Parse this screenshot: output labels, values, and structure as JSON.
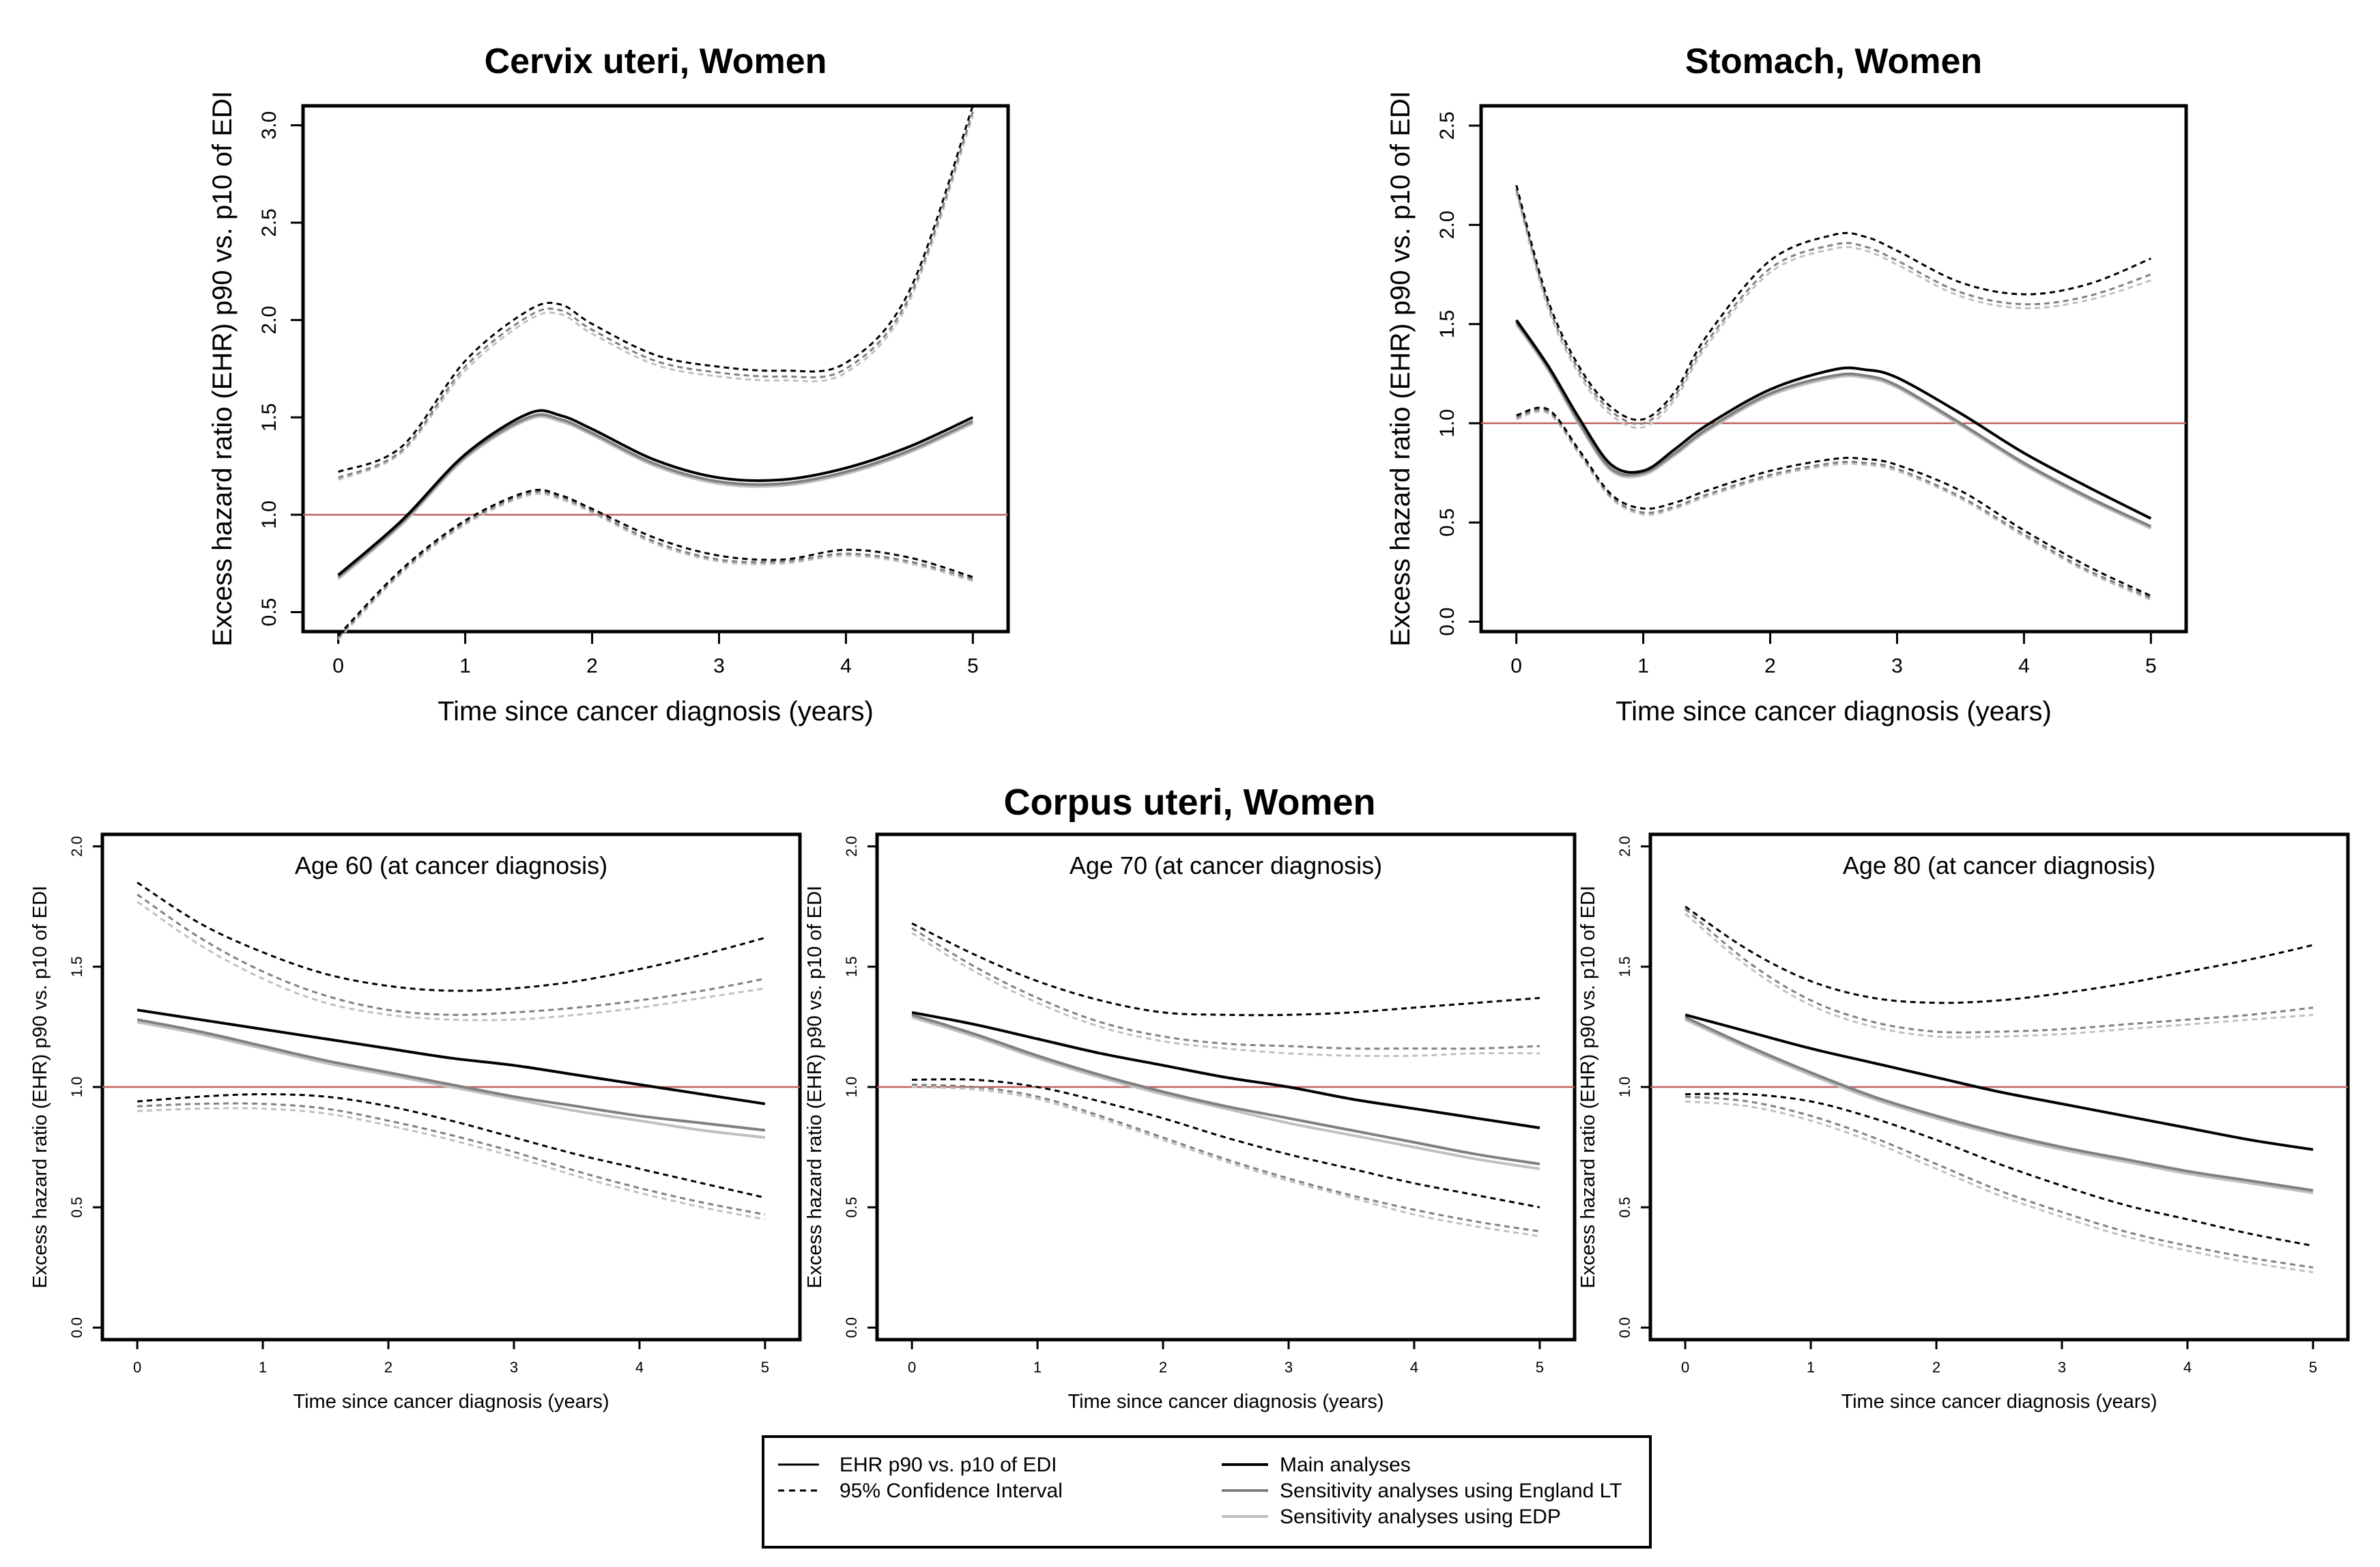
{
  "figure_title_bottom": "Corpus uteri, Women",
  "colors": {
    "main": "#000000",
    "england_lt": "#808080",
    "edp": "#c0c0c0",
    "reference": "#c06060"
  },
  "legend": {
    "line_types": [
      {
        "label": "EHR p90 vs. p10 of EDI",
        "style": "solid"
      },
      {
        "label": "95% Confidence Interval",
        "style": "dashed"
      }
    ],
    "analyses": [
      {
        "label": "Main analyses",
        "color": "#000000"
      },
      {
        "label": "Sensitivity analyses using England LT",
        "color": "#808080"
      },
      {
        "label": "Sensitivity analyses using EDP",
        "color": "#c0c0c0"
      }
    ]
  },
  "chart_data": [
    {
      "id": "cervix",
      "type": "line",
      "title": "Cervix uteri, Women",
      "panel_label": "",
      "xlabel": "Time since cancer diagnosis (years)",
      "ylabel": "Excess hazard ratio (EHR) p90 vs. p10 of EDI",
      "xlim": [
        0,
        5
      ],
      "ylim": [
        0.4,
        3.1
      ],
      "xticks": [
        "0",
        "1",
        "2",
        "3",
        "4",
        "5"
      ],
      "yticks": [
        "0.5",
        "1.0",
        "1.5",
        "2.0",
        "2.5",
        "3.0"
      ],
      "reference_line": 1.0,
      "x": [
        0,
        0.5,
        1,
        1.5,
        1.75,
        2,
        2.5,
        3,
        3.5,
        4,
        4.5,
        5
      ],
      "series": [
        {
          "name": "Main analyses",
          "ci": false,
          "values": [
            0.69,
            0.97,
            1.31,
            1.52,
            1.51,
            1.44,
            1.28,
            1.19,
            1.18,
            1.24,
            1.35,
            1.5
          ]
        },
        {
          "name": "Main analyses 95% CI lower",
          "ci": true,
          "values": [
            0.38,
            0.72,
            0.97,
            1.12,
            1.1,
            1.03,
            0.88,
            0.79,
            0.77,
            0.82,
            0.78,
            0.68
          ]
        },
        {
          "name": "Main analyses 95% CI upper",
          "ci": true,
          "values": [
            1.22,
            1.35,
            1.79,
            2.05,
            2.08,
            1.98,
            1.82,
            1.76,
            1.74,
            1.78,
            2.15,
            3.1
          ]
        },
        {
          "name": "Sensitivity analyses using England LT",
          "ci": false,
          "values": [
            0.68,
            0.96,
            1.3,
            1.5,
            1.49,
            1.42,
            1.26,
            1.17,
            1.16,
            1.22,
            1.33,
            1.48
          ]
        },
        {
          "name": "England LT 95% CI lower",
          "ci": true,
          "values": [
            0.37,
            0.71,
            0.96,
            1.11,
            1.09,
            1.02,
            0.86,
            0.77,
            0.76,
            0.8,
            0.76,
            0.67
          ]
        },
        {
          "name": "England LT 95% CI upper",
          "ci": true,
          "values": [
            1.19,
            1.33,
            1.76,
            2.02,
            2.05,
            1.95,
            1.79,
            1.73,
            1.71,
            1.75,
            2.12,
            3.07
          ]
        },
        {
          "name": "Sensitivity analyses using EDP",
          "ci": false,
          "values": [
            0.67,
            0.95,
            1.29,
            1.49,
            1.48,
            1.41,
            1.25,
            1.16,
            1.15,
            1.21,
            1.32,
            1.47
          ]
        },
        {
          "name": "EDP 95% CI lower",
          "ci": true,
          "values": [
            0.36,
            0.7,
            0.95,
            1.1,
            1.08,
            1.01,
            0.85,
            0.76,
            0.75,
            0.79,
            0.75,
            0.66
          ]
        },
        {
          "name": "EDP 95% CI upper",
          "ci": true,
          "values": [
            1.18,
            1.32,
            1.74,
            2.0,
            2.03,
            1.93,
            1.77,
            1.71,
            1.69,
            1.73,
            2.1,
            3.05
          ]
        }
      ]
    },
    {
      "id": "stomach",
      "type": "line",
      "title": "Stomach, Women",
      "panel_label": "",
      "xlabel": "Time since cancer diagnosis (years)",
      "ylabel": "Excess hazard ratio (EHR) p90 vs. p10 of EDI",
      "xlim": [
        0,
        5
      ],
      "ylim": [
        -0.05,
        2.6
      ],
      "xticks": [
        "0",
        "1",
        "2",
        "3",
        "4",
        "5"
      ],
      "yticks": [
        "0.0",
        "0.5",
        "1.0",
        "1.5",
        "2.0",
        "2.5"
      ],
      "reference_line": 1.0,
      "x": [
        0,
        0.25,
        0.5,
        0.75,
        1,
        1.25,
        1.5,
        2,
        2.5,
        2.75,
        3,
        3.5,
        4,
        4.5,
        5
      ],
      "series": [
        {
          "name": "Main analyses",
          "ci": false,
          "values": [
            1.52,
            1.29,
            1.02,
            0.79,
            0.76,
            0.87,
            0.99,
            1.17,
            1.27,
            1.27,
            1.23,
            1.05,
            0.85,
            0.68,
            0.52
          ]
        },
        {
          "name": "Main analyses 95% CI lower",
          "ci": true,
          "values": [
            1.04,
            1.07,
            0.86,
            0.64,
            0.57,
            0.6,
            0.66,
            0.76,
            0.82,
            0.82,
            0.79,
            0.66,
            0.46,
            0.28,
            0.13
          ]
        },
        {
          "name": "Main analyses 95% CI upper",
          "ci": true,
          "values": [
            2.2,
            1.62,
            1.28,
            1.08,
            1.02,
            1.16,
            1.44,
            1.82,
            1.95,
            1.94,
            1.87,
            1.71,
            1.65,
            1.7,
            1.83
          ]
        },
        {
          "name": "Sensitivity analyses using England LT",
          "ci": false,
          "values": [
            1.51,
            1.28,
            1.0,
            0.77,
            0.75,
            0.85,
            0.97,
            1.15,
            1.24,
            1.24,
            1.19,
            1.0,
            0.8,
            0.63,
            0.48
          ]
        },
        {
          "name": "England LT 95% CI lower",
          "ci": true,
          "values": [
            1.03,
            1.06,
            0.85,
            0.63,
            0.55,
            0.58,
            0.64,
            0.74,
            0.8,
            0.8,
            0.77,
            0.63,
            0.44,
            0.26,
            0.12
          ]
        },
        {
          "name": "England LT 95% CI upper",
          "ci": true,
          "values": [
            2.18,
            1.6,
            1.26,
            1.06,
            1.0,
            1.14,
            1.41,
            1.78,
            1.9,
            1.89,
            1.82,
            1.66,
            1.6,
            1.64,
            1.75
          ]
        },
        {
          "name": "Sensitivity analyses using EDP",
          "ci": false,
          "values": [
            1.5,
            1.27,
            0.99,
            0.76,
            0.74,
            0.84,
            0.96,
            1.14,
            1.23,
            1.23,
            1.18,
            0.99,
            0.79,
            0.62,
            0.47
          ]
        },
        {
          "name": "EDP 95% CI lower",
          "ci": true,
          "values": [
            1.02,
            1.05,
            0.84,
            0.62,
            0.54,
            0.57,
            0.63,
            0.73,
            0.79,
            0.79,
            0.76,
            0.62,
            0.43,
            0.25,
            0.11
          ]
        },
        {
          "name": "EDP 95% CI upper",
          "ci": true,
          "values": [
            2.16,
            1.58,
            1.24,
            1.04,
            0.98,
            1.12,
            1.39,
            1.76,
            1.88,
            1.87,
            1.8,
            1.64,
            1.58,
            1.62,
            1.72
          ]
        }
      ]
    },
    {
      "id": "age60",
      "type": "line",
      "title": "",
      "panel_label": "Age 60 (at cancer diagnosis)",
      "xlabel": "Time since cancer diagnosis (years)",
      "ylabel": "Excess hazard ratio (EHR) p90 vs. p10 of EDI",
      "xlim": [
        0,
        5
      ],
      "ylim": [
        -0.05,
        2.05
      ],
      "xticks": [
        "0",
        "1",
        "2",
        "3",
        "4",
        "5"
      ],
      "yticks": [
        "0.0",
        "0.5",
        "1.0",
        "1.5",
        "2.0"
      ],
      "reference_line": 1.0,
      "x": [
        0,
        0.5,
        1,
        1.5,
        2,
        2.5,
        3,
        3.5,
        4,
        4.5,
        5
      ],
      "series": [
        {
          "name": "Main analyses",
          "ci": false,
          "values": [
            1.32,
            1.28,
            1.24,
            1.2,
            1.16,
            1.12,
            1.09,
            1.05,
            1.01,
            0.97,
            0.93
          ]
        },
        {
          "name": "Main analyses 95% CI lower",
          "ci": true,
          "values": [
            0.94,
            0.96,
            0.97,
            0.96,
            0.92,
            0.86,
            0.79,
            0.72,
            0.66,
            0.6,
            0.54
          ]
        },
        {
          "name": "Main analyses 95% CI upper",
          "ci": true,
          "values": [
            1.85,
            1.68,
            1.56,
            1.47,
            1.42,
            1.4,
            1.41,
            1.44,
            1.49,
            1.55,
            1.62
          ]
        },
        {
          "name": "Sensitivity analyses using England LT",
          "ci": false,
          "values": [
            1.28,
            1.23,
            1.17,
            1.11,
            1.06,
            1.01,
            0.96,
            0.92,
            0.88,
            0.85,
            0.82
          ]
        },
        {
          "name": "England LT 95% CI lower",
          "ci": true,
          "values": [
            0.92,
            0.93,
            0.93,
            0.91,
            0.86,
            0.8,
            0.73,
            0.65,
            0.58,
            0.52,
            0.47
          ]
        },
        {
          "name": "England LT 95% CI upper",
          "ci": true,
          "values": [
            1.8,
            1.62,
            1.48,
            1.38,
            1.32,
            1.3,
            1.31,
            1.33,
            1.36,
            1.4,
            1.45
          ]
        },
        {
          "name": "Sensitivity analyses using EDP",
          "ci": false,
          "values": [
            1.27,
            1.22,
            1.16,
            1.1,
            1.05,
            1.0,
            0.95,
            0.9,
            0.86,
            0.82,
            0.79
          ]
        },
        {
          "name": "EDP 95% CI lower",
          "ci": true,
          "values": [
            0.9,
            0.91,
            0.91,
            0.89,
            0.84,
            0.78,
            0.71,
            0.63,
            0.56,
            0.5,
            0.45
          ]
        },
        {
          "name": "EDP 95% CI upper",
          "ci": true,
          "values": [
            1.77,
            1.59,
            1.45,
            1.35,
            1.3,
            1.28,
            1.28,
            1.3,
            1.33,
            1.37,
            1.41
          ]
        }
      ]
    },
    {
      "id": "age70",
      "type": "line",
      "title": "",
      "panel_label": "Age 70 (at cancer diagnosis)",
      "xlabel": "Time since cancer diagnosis (years)",
      "ylabel": "Excess hazard ratio (EHR) p90 vs. p10 of EDI",
      "xlim": [
        0,
        5
      ],
      "ylim": [
        -0.05,
        2.05
      ],
      "xticks": [
        "0",
        "1",
        "2",
        "3",
        "4",
        "5"
      ],
      "yticks": [
        "0.0",
        "0.5",
        "1.0",
        "1.5",
        "2.0"
      ],
      "reference_line": 1.0,
      "x": [
        0,
        0.5,
        1,
        1.5,
        2,
        2.5,
        3,
        3.5,
        4,
        4.5,
        5
      ],
      "series": [
        {
          "name": "Main analyses",
          "ci": false,
          "values": [
            1.31,
            1.26,
            1.2,
            1.14,
            1.09,
            1.04,
            1.0,
            0.95,
            0.91,
            0.87,
            0.83
          ]
        },
        {
          "name": "Main analyses 95% CI lower",
          "ci": true,
          "values": [
            1.03,
            1.03,
            1.0,
            0.94,
            0.87,
            0.79,
            0.72,
            0.66,
            0.6,
            0.55,
            0.5
          ]
        },
        {
          "name": "Main analyses 95% CI upper",
          "ci": true,
          "values": [
            1.68,
            1.55,
            1.44,
            1.36,
            1.31,
            1.3,
            1.3,
            1.31,
            1.33,
            1.35,
            1.37
          ]
        },
        {
          "name": "Sensitivity analyses using England LT",
          "ci": false,
          "values": [
            1.3,
            1.22,
            1.13,
            1.05,
            0.98,
            0.92,
            0.87,
            0.82,
            0.77,
            0.72,
            0.68
          ]
        },
        {
          "name": "England LT 95% CI lower",
          "ci": true,
          "values": [
            1.01,
            1.0,
            0.96,
            0.88,
            0.79,
            0.7,
            0.62,
            0.55,
            0.49,
            0.44,
            0.4
          ]
        },
        {
          "name": "England LT 95% CI upper",
          "ci": true,
          "values": [
            1.66,
            1.5,
            1.37,
            1.27,
            1.21,
            1.18,
            1.17,
            1.16,
            1.16,
            1.16,
            1.17
          ]
        },
        {
          "name": "Sensitivity analyses using EDP",
          "ci": false,
          "values": [
            1.29,
            1.21,
            1.12,
            1.04,
            0.97,
            0.91,
            0.85,
            0.8,
            0.75,
            0.7,
            0.66
          ]
        },
        {
          "name": "EDP 95% CI lower",
          "ci": true,
          "values": [
            1.0,
            0.99,
            0.95,
            0.87,
            0.78,
            0.69,
            0.61,
            0.54,
            0.47,
            0.42,
            0.38
          ]
        },
        {
          "name": "EDP 95% CI upper",
          "ci": true,
          "values": [
            1.64,
            1.48,
            1.35,
            1.25,
            1.19,
            1.16,
            1.14,
            1.13,
            1.13,
            1.14,
            1.14
          ]
        }
      ]
    },
    {
      "id": "age80",
      "type": "line",
      "title": "",
      "panel_label": "Age 80 (at cancer diagnosis)",
      "xlabel": "Time since cancer diagnosis (years)",
      "ylabel": "Excess hazard ratio (EHR) p90 vs. p10 of EDI",
      "xlim": [
        0,
        5
      ],
      "ylim": [
        -0.05,
        2.05
      ],
      "xticks": [
        "0",
        "1",
        "2",
        "3",
        "4",
        "5"
      ],
      "yticks": [
        "0.0",
        "0.5",
        "1.0",
        "1.5",
        "2.0"
      ],
      "reference_line": 1.0,
      "x": [
        0,
        0.5,
        1,
        1.5,
        2,
        2.5,
        3,
        3.5,
        4,
        4.5,
        5
      ],
      "series": [
        {
          "name": "Main analyses",
          "ci": false,
          "values": [
            1.3,
            1.23,
            1.16,
            1.1,
            1.04,
            0.98,
            0.93,
            0.88,
            0.83,
            0.78,
            0.74
          ]
        },
        {
          "name": "Main analyses 95% CI lower",
          "ci": true,
          "values": [
            0.97,
            0.97,
            0.94,
            0.87,
            0.78,
            0.68,
            0.59,
            0.51,
            0.45,
            0.39,
            0.34
          ]
        },
        {
          "name": "Main analyses 95% CI upper",
          "ci": true,
          "values": [
            1.75,
            1.57,
            1.44,
            1.37,
            1.35,
            1.36,
            1.39,
            1.43,
            1.48,
            1.53,
            1.59
          ]
        },
        {
          "name": "Sensitivity analyses using England LT",
          "ci": false,
          "values": [
            1.29,
            1.17,
            1.06,
            0.96,
            0.88,
            0.81,
            0.75,
            0.7,
            0.65,
            0.61,
            0.57
          ]
        },
        {
          "name": "England LT 95% CI lower",
          "ci": true,
          "values": [
            0.96,
            0.94,
            0.88,
            0.79,
            0.68,
            0.57,
            0.48,
            0.4,
            0.34,
            0.29,
            0.25
          ]
        },
        {
          "name": "England LT 95% CI upper",
          "ci": true,
          "values": [
            1.74,
            1.52,
            1.36,
            1.27,
            1.23,
            1.23,
            1.24,
            1.26,
            1.28,
            1.3,
            1.33
          ]
        },
        {
          "name": "Sensitivity analyses using EDP",
          "ci": false,
          "values": [
            1.28,
            1.16,
            1.05,
            0.95,
            0.87,
            0.8,
            0.74,
            0.69,
            0.64,
            0.6,
            0.56
          ]
        },
        {
          "name": "EDP 95% CI lower",
          "ci": true,
          "values": [
            0.94,
            0.92,
            0.86,
            0.77,
            0.66,
            0.55,
            0.46,
            0.38,
            0.32,
            0.27,
            0.23
          ]
        },
        {
          "name": "EDP 95% CI upper",
          "ci": true,
          "values": [
            1.72,
            1.5,
            1.34,
            1.25,
            1.21,
            1.21,
            1.22,
            1.24,
            1.26,
            1.28,
            1.3
          ]
        }
      ]
    }
  ]
}
